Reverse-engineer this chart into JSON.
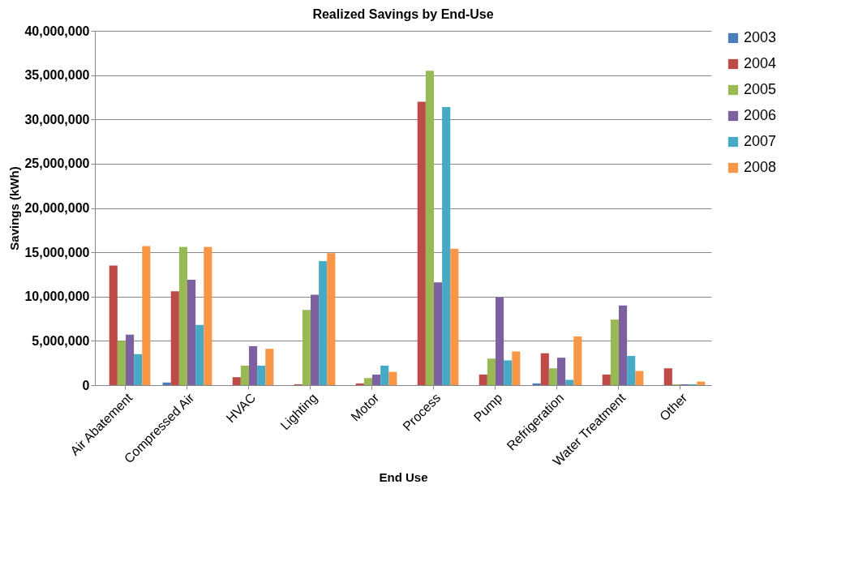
{
  "chart_data": {
    "type": "bar",
    "title": "Realized Savings  by End-Use",
    "xlabel": "End Use",
    "ylabel": "Savings (kWh)",
    "categories": [
      "Air Abatement",
      "Compressed Air",
      "HVAC",
      "Lighting",
      "Motor",
      "Process",
      "Pump",
      "Refrigeration",
      "Water Treatment",
      "Other"
    ],
    "series": [
      {
        "name": "2003",
        "color": "#4a7ebb",
        "values": [
          0,
          300000,
          0,
          0,
          0,
          0,
          0,
          200000,
          0,
          0
        ]
      },
      {
        "name": "2004",
        "color": "#be4b48",
        "values": [
          13500000,
          10600000,
          900000,
          100000,
          200000,
          32000000,
          1200000,
          3600000,
          1200000,
          1900000
        ]
      },
      {
        "name": "2005",
        "color": "#98b954",
        "values": [
          5000000,
          15600000,
          2200000,
          8500000,
          800000,
          35500000,
          3000000,
          1900000,
          7400000,
          100000
        ]
      },
      {
        "name": "2006",
        "color": "#7d60a0",
        "values": [
          5700000,
          11900000,
          4400000,
          10200000,
          1200000,
          11600000,
          9900000,
          3100000,
          9000000,
          100000
        ]
      },
      {
        "name": "2007",
        "color": "#46aac5",
        "values": [
          3500000,
          6800000,
          2200000,
          14000000,
          2200000,
          31400000,
          2800000,
          600000,
          3300000,
          100000
        ]
      },
      {
        "name": "2008",
        "color": "#f79646",
        "values": [
          15700000,
          15600000,
          4100000,
          14900000,
          1500000,
          15400000,
          3800000,
          5500000,
          1600000,
          400000
        ]
      }
    ],
    "ylim": [
      0,
      40000000
    ],
    "yticks": [
      0,
      {
        "value": 5000000,
        "label": "5,000,000"
      },
      {
        "value": 10000000,
        "label": "10,000,000"
      },
      {
        "value": 15000000,
        "label": "15,000,000"
      },
      {
        "value": 20000000,
        "label": "20,000,000"
      },
      {
        "value": 25000000,
        "label": "25,000,000"
      },
      {
        "value": 30000000,
        "label": "30,000,000"
      },
      {
        "value": 35000000,
        "label": "35,000,000"
      },
      {
        "value": 40000000,
        "label": "40,000,000"
      }
    ],
    "grid": "y",
    "legend": "right"
  }
}
